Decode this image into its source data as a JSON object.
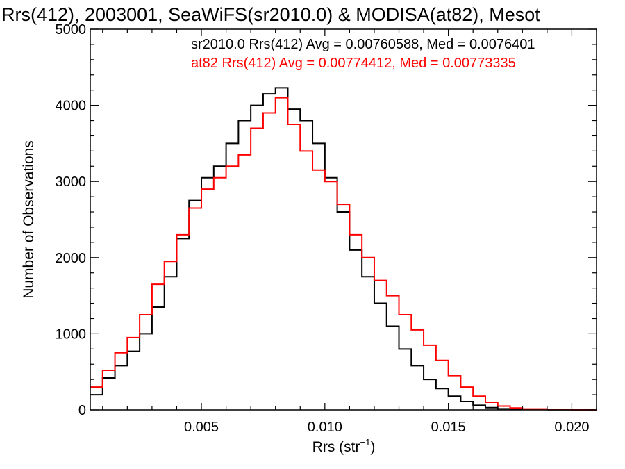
{
  "chart_data": {
    "type": "line",
    "title": "Rrs(412), 2003001, SeaWiFS(sr2010.0) & MODISA(at82), Mesot",
    "xlabel": "Rrs (str",
    "xlabel_sup": "−1",
    "xlabel_end": ")",
    "ylabel": "Number of Observations",
    "xlim": [
      0.0005,
      0.021
    ],
    "ylim": [
      0,
      5000
    ],
    "xticks": [
      0.005,
      0.01,
      0.015,
      0.02
    ],
    "xtick_labels": [
      "0.005",
      "0.010",
      "0.015",
      "0.020"
    ],
    "yticks": [
      0,
      1000,
      2000,
      3000,
      4000,
      5000
    ],
    "ytick_labels": [
      "0",
      "1000",
      "2000",
      "3000",
      "4000",
      "5000"
    ],
    "grid": false,
    "legend_position": "top-right",
    "series": [
      {
        "name": "sr2010.0 Rrs(412) Avg = 0.00760588, Med = 0.0076401",
        "color": "#000000",
        "x": [
          0.0005,
          0.001,
          0.0015,
          0.002,
          0.0025,
          0.003,
          0.0035,
          0.004,
          0.0045,
          0.005,
          0.0055,
          0.006,
          0.0065,
          0.007,
          0.0075,
          0.008,
          0.0085,
          0.009,
          0.0095,
          0.01,
          0.0105,
          0.011,
          0.0115,
          0.012,
          0.0125,
          0.013,
          0.0135,
          0.014,
          0.0145,
          0.015,
          0.0155,
          0.016,
          0.0165,
          0.017,
          0.0175,
          0.018,
          0.019,
          0.02,
          0.021
        ],
        "y": [
          200,
          420,
          580,
          770,
          1000,
          1350,
          1750,
          2250,
          2750,
          3050,
          3200,
          3500,
          3800,
          4000,
          4150,
          4230,
          3950,
          3800,
          3500,
          3050,
          2600,
          2100,
          1750,
          1400,
          1100,
          800,
          580,
          400,
          280,
          180,
          110,
          60,
          30,
          15,
          8,
          4,
          2,
          1,
          0
        ]
      },
      {
        "name": "at82 Rrs(412) Avg = 0.00774412, Med = 0.00773335",
        "color": "#ff0000",
        "x": [
          0.0005,
          0.001,
          0.0015,
          0.002,
          0.0025,
          0.003,
          0.0035,
          0.004,
          0.0045,
          0.005,
          0.0055,
          0.006,
          0.0065,
          0.007,
          0.0075,
          0.008,
          0.0085,
          0.009,
          0.0095,
          0.01,
          0.0105,
          0.011,
          0.0115,
          0.012,
          0.0125,
          0.013,
          0.0135,
          0.014,
          0.0145,
          0.015,
          0.0155,
          0.016,
          0.0165,
          0.017,
          0.0175,
          0.018,
          0.019,
          0.02,
          0.021
        ],
        "y": [
          300,
          520,
          750,
          950,
          1250,
          1650,
          1950,
          2300,
          2650,
          2900,
          3050,
          3200,
          3350,
          3700,
          3900,
          4100,
          3750,
          3400,
          3150,
          3000,
          2700,
          2300,
          2000,
          1700,
          1500,
          1250,
          1050,
          850,
          650,
          450,
          300,
          180,
          100,
          50,
          25,
          12,
          5,
          2,
          1
        ]
      }
    ]
  }
}
